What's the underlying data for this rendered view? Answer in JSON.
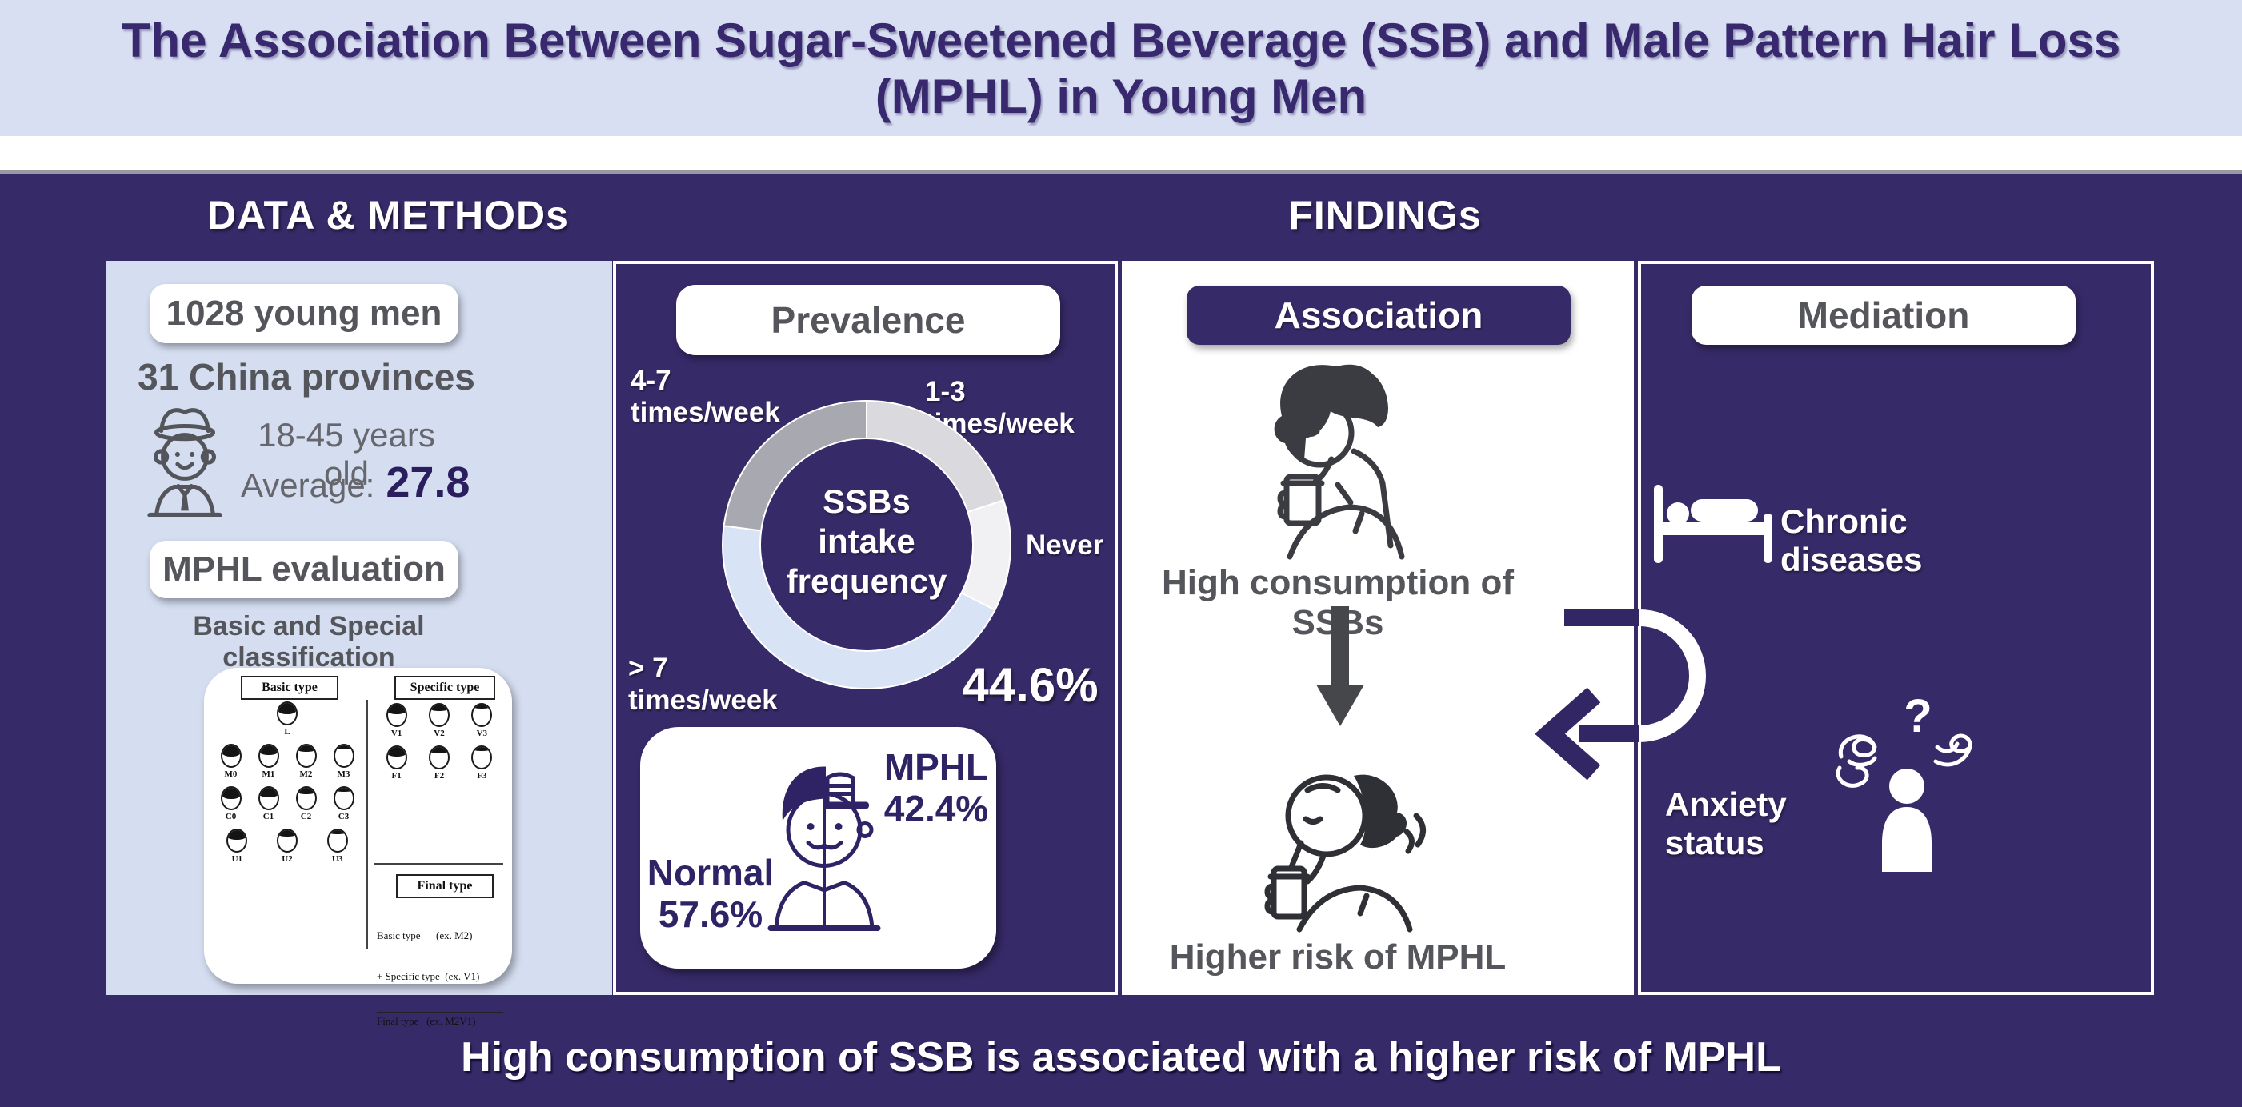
{
  "title": {
    "line1": "The Association Between Sugar-Sweetened Beverage (SSB) and Male Pattern Hair Loss",
    "line2": "(MPHL) in Young Men"
  },
  "sections": {
    "left": "DATA & METHODs",
    "right": "FINDINGs"
  },
  "colors": {
    "banner_bg": "#D8DFF2",
    "main_bg": "#372A68",
    "panel_light_bg": "#D5DEF1",
    "accent_purple_text": "#2F2365",
    "gray_text": "#55565B",
    "white": "#FFFFFF"
  },
  "p1": {
    "cohort": "1028 young men",
    "provinces": "31 China provinces",
    "age_range": "18-45 years old",
    "average_label": "Average:",
    "average_value": "27.8",
    "evaluation": "MPHL evaluation",
    "note": "Basic and Special classification",
    "basp": {
      "basic_label": "Basic type",
      "specific_label": "Specific type",
      "final_label": "Final type",
      "basic_rows": [
        [
          "L"
        ],
        [
          "M0",
          "M1",
          "M2",
          "M3"
        ],
        [
          "C0",
          "C1",
          "C2",
          "C3"
        ],
        [
          "U1",
          "U2",
          "U3"
        ]
      ],
      "specific_rows": [
        [
          "V1",
          "V2",
          "V3"
        ],
        [
          "F1",
          "F2",
          "F3"
        ]
      ],
      "final": {
        "l1": "Basic type      (ex. M2)",
        "l2": "+ Specific type  (ex. V1)",
        "l3": "Final type   (ex. M2V1)"
      }
    }
  },
  "p2": {
    "header": "Prevalence",
    "label_47": "4-7 times/week",
    "label_13": "1-3 times/week",
    "label_never": "Never",
    "label_gt7": "> 7 times/week",
    "big_value": "44.6%",
    "center": [
      "SSBs",
      "intake",
      "frequency"
    ],
    "normal_label": "Normal",
    "normal_value": "57.6%",
    "mphl_label": "MPHL",
    "mphl_value": "42.4%"
  },
  "p3": {
    "header": "Association",
    "cause": "High consumption of SSBs",
    "effect": "Higher risk of MPHL"
  },
  "p4": {
    "header": "Mediation",
    "chronic": "Chronic diseases",
    "anxiety": "Anxiety status",
    "qmark": "?"
  },
  "bottom": {
    "text": "High consumption of SSB is associated with a higher risk of MPHL"
  },
  "chart_data": [
    {
      "type": "pie",
      "donut": true,
      "title": "SSBs intake frequency",
      "legend_position": "around",
      "direction": "clockwise",
      "start_angle_deg": 0,
      "segments": [
        {
          "label": "1-3 times/week",
          "percent": 20.0,
          "color": "#D9D9DE"
        },
        {
          "label": "Never",
          "percent": 12.5,
          "color": "#F1F1F4"
        },
        {
          "label": "> 7 times/week",
          "percent": 44.6,
          "color": "#D9E3F6",
          "shown_value": "44.6%"
        },
        {
          "label": "4-7 times/week",
          "percent": 22.9,
          "color": "#A8A8B1"
        }
      ],
      "center_label_lines": [
        "SSBs",
        "intake",
        "frequency"
      ]
    },
    {
      "type": "pie",
      "title": "MPHL prevalence",
      "segments": [
        {
          "label": "Normal",
          "percent": 57.6
        },
        {
          "label": "MPHL",
          "percent": 42.4
        }
      ]
    }
  ]
}
